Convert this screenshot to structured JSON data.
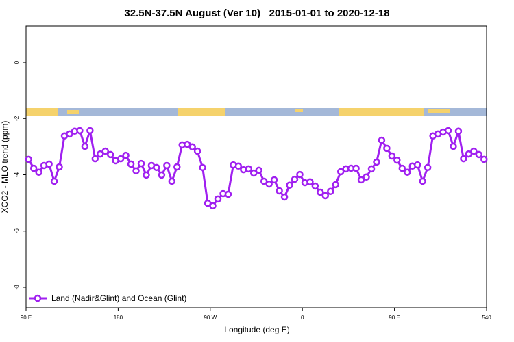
{
  "chart_data": {
    "type": "line",
    "title": "32.5N-37.5N August (Ver 10)   2015-01-01 to 2020-12-18",
    "x_label": "Longitude (deg E)",
    "y_label": "XCO2 - MLO trend (ppm)",
    "x": [
      92.5,
      97.5,
      102.5,
      107.5,
      112.5,
      117.5,
      122.5,
      127.5,
      132.5,
      137.5,
      142.5,
      147.5,
      152.5,
      157.5,
      162.5,
      167.5,
      172.5,
      177.5,
      182.5,
      187.5,
      192.5,
      197.5,
      202.5,
      207.5,
      212.5,
      217.5,
      222.5,
      227.5,
      232.5,
      237.5,
      242.5,
      247.5,
      252.5,
      257.5,
      262.5,
      267.5,
      272.5,
      277.5,
      282.5,
      287.5,
      292.5,
      297.5,
      302.5,
      307.5,
      312.5,
      317.5,
      322.5,
      327.5,
      332.5,
      337.5,
      342.5,
      347.5,
      352.5,
      357.5,
      362.5,
      367.5,
      372.5,
      377.5,
      382.5,
      387.5,
      392.5,
      397.5,
      402.5,
      407.5,
      412.5,
      417.5,
      422.5,
      427.5,
      432.5,
      437.5,
      442.5,
      447.5,
      452.5,
      457.5,
      462.5,
      467.5,
      472.5,
      477.5,
      482.5,
      487.5,
      492.5,
      497.5,
      502.5,
      507.5,
      512.5,
      517.5,
      522.5,
      527.5,
      532.5,
      537.5
    ],
    "series": [
      {
        "name": "Land (Nadir&Glint) and Ocean (Glint)",
        "color": "#a020f0",
        "values": [
          -3.45,
          -3.77,
          -3.91,
          -3.67,
          -3.62,
          -4.23,
          -3.72,
          -2.62,
          -2.55,
          -2.45,
          -2.43,
          -2.99,
          -2.43,
          -3.43,
          -3.26,
          -3.16,
          -3.28,
          -3.5,
          -3.43,
          -3.31,
          -3.62,
          -3.86,
          -3.6,
          -4.01,
          -3.67,
          -3.74,
          -4.01,
          -3.67,
          -4.23,
          -3.72,
          -2.94,
          -2.92,
          -3.01,
          -3.16,
          -3.74,
          -5.01,
          -5.1,
          -4.86,
          -4.67,
          -4.69,
          -3.65,
          -3.69,
          -3.82,
          -3.79,
          -3.94,
          -3.84,
          -4.23,
          -4.33,
          -4.18,
          -4.57,
          -4.79,
          -4.37,
          -4.16,
          -3.99,
          -4.28,
          -4.25,
          -4.4,
          -4.62,
          -4.74,
          -4.59,
          -4.35,
          -3.89,
          -3.79,
          -3.77,
          -3.77,
          -4.18,
          -4.08,
          -3.79,
          -3.55,
          -2.77,
          -3.06,
          -3.33,
          -3.48,
          -3.77,
          -3.91,
          -3.69,
          -3.65,
          -4.23,
          -3.74,
          -2.62,
          -2.55,
          -2.48,
          -2.43,
          -2.99,
          -2.45,
          -3.43,
          -3.26,
          -3.16,
          -3.28,
          -3.45
        ]
      }
    ],
    "xlim": [
      90,
      540
    ],
    "xticks": [
      {
        "value": 90,
        "label": "90 E"
      },
      180,
      {
        "value": 270,
        "label": "90 W"
      },
      {
        "value": 360,
        "label": "0"
      },
      {
        "value": 450,
        "label": "90 E"
      },
      540
    ],
    "ylim": [
      -8.73,
      1.29
    ],
    "yticks": [
      0,
      -2,
      -4,
      -6,
      -8
    ],
    "legend": "bottom-left"
  }
}
